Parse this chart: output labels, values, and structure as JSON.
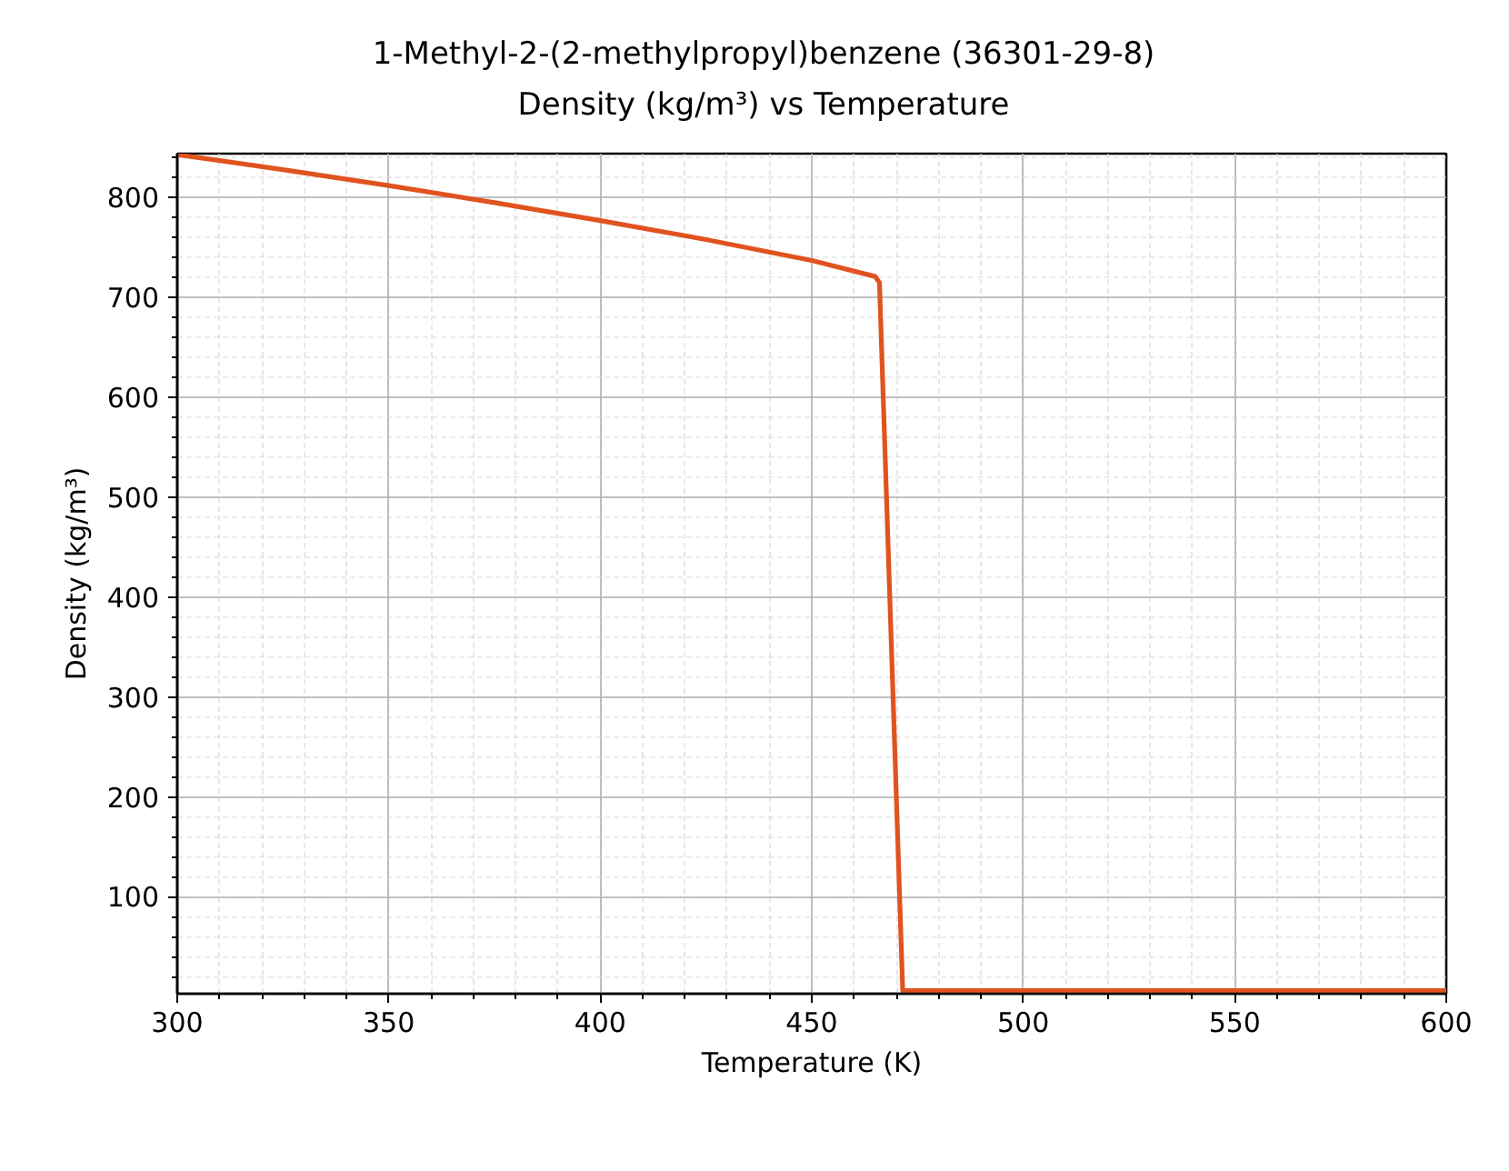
{
  "chart_data": {
    "type": "line",
    "title": "1-Methyl-2-(2-methylpropyl)benzene (36301-29-8)\nDensity (kg/m³) vs Temperature",
    "xlabel": "Temperature (K)",
    "ylabel": "Density (kg/m³)",
    "series": [
      {
        "color": "#e0531f",
        "x": [
          300,
          325,
          350,
          375,
          400,
          425,
          450,
          465,
          466,
          471.5,
          600
        ],
        "values": [
          843,
          828,
          812,
          795,
          777,
          758,
          737,
          721,
          715,
          6,
          6
        ]
      }
    ],
    "xlim": [
      300,
      600
    ],
    "ylim": [
      3,
      844
    ],
    "xticks": [
      300,
      350,
      400,
      450,
      500,
      550,
      600
    ],
    "yticks": [
      100,
      200,
      300,
      400,
      500,
      600,
      700,
      800
    ],
    "grid": true,
    "line_style": "solid"
  }
}
